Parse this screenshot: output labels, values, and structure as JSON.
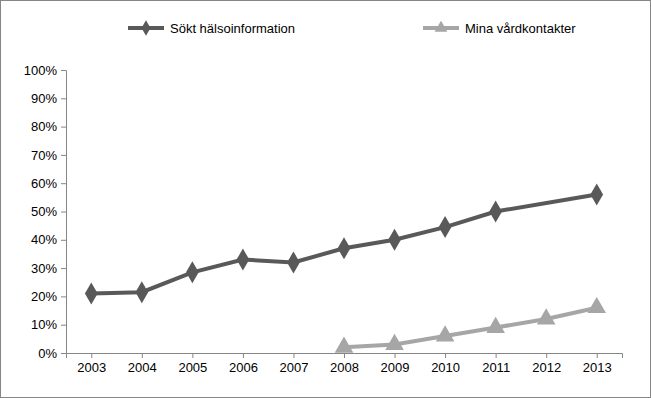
{
  "chart_data": {
    "type": "line",
    "series": [
      {
        "name": "Sökt hälsoinformation",
        "color": "#595959",
        "marker": "diamond",
        "x": [
          2003,
          2004,
          2005,
          2006,
          2007,
          2008,
          2009,
          2010,
          2011,
          2013
        ],
        "values": [
          21,
          21.5,
          28.5,
          33,
          32,
          37,
          40,
          44.5,
          50,
          56
        ]
      },
      {
        "name": "Mina vårdkontakter",
        "color": "#a6a6a6",
        "marker": "triangle",
        "x": [
          2008,
          2009,
          2010,
          2011,
          2012,
          2013
        ],
        "values": [
          2,
          3,
          6,
          9,
          12,
          16
        ]
      }
    ],
    "xlim": [
      2002.5,
      2013.5
    ],
    "xticks": [
      2003,
      2004,
      2005,
      2006,
      2007,
      2008,
      2009,
      2010,
      2011,
      2012,
      2013
    ],
    "ylim": [
      0,
      100
    ],
    "yticks": [
      {
        "value": 0,
        "label": "0%"
      },
      {
        "value": 10,
        "label": "10%"
      },
      {
        "value": 20,
        "label": "20%"
      },
      {
        "value": 30,
        "label": "30%"
      },
      {
        "value": 40,
        "label": "40%"
      },
      {
        "value": 50,
        "label": "50%"
      },
      {
        "value": 60,
        "label": "60%"
      },
      {
        "value": 70,
        "label": "70%"
      },
      {
        "value": 80,
        "label": "80%"
      },
      {
        "value": 90,
        "label": "90%"
      },
      {
        "value": 100,
        "label": "100%"
      }
    ],
    "grid": false,
    "legend": "top"
  }
}
